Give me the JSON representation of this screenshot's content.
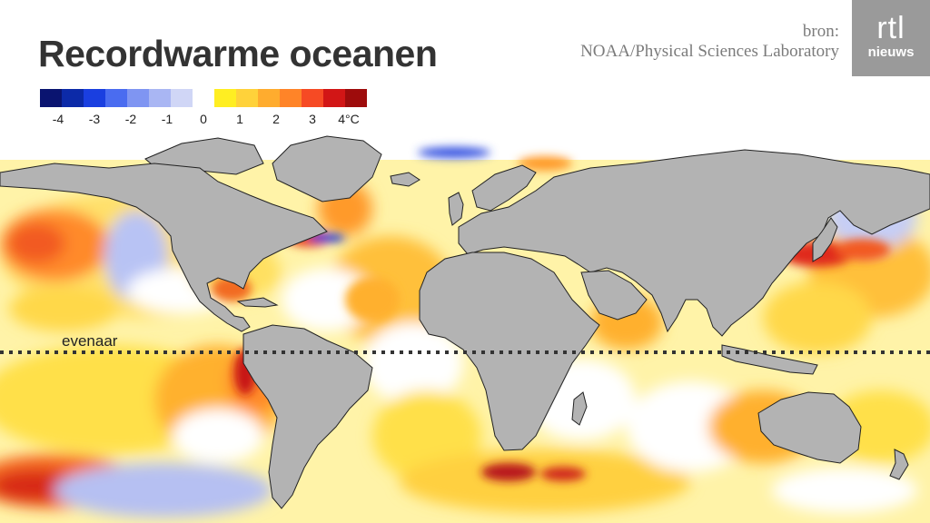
{
  "title": "Recordwarme oceanen",
  "source": {
    "prefix": "bron:",
    "name": "NOAA/Physical Sciences Laboratory"
  },
  "logo": {
    "top": "rtl",
    "bottom": "nieuws"
  },
  "legend": {
    "colors": [
      "#0a1470",
      "#0c2aa8",
      "#1a3fe0",
      "#4a6cf0",
      "#7f95f2",
      "#a9b6f3",
      "#d0d6f6",
      "#ffffff",
      "#ffee22",
      "#ffd23a",
      "#ffac2e",
      "#ff8428",
      "#f64a24",
      "#d21616",
      "#9e0c0c"
    ],
    "labels": [
      "-4",
      "-3",
      "-2",
      "-1",
      "0",
      "1",
      "2",
      "3",
      "4°C"
    ],
    "label_values": [
      -4,
      -3,
      -2,
      -1,
      0,
      1,
      2,
      3,
      4
    ],
    "range": [
      -4.5,
      4.5
    ],
    "unit": "°C"
  },
  "map": {
    "equator_label": "evenaar",
    "land_color": "#b3b3b3"
  }
}
